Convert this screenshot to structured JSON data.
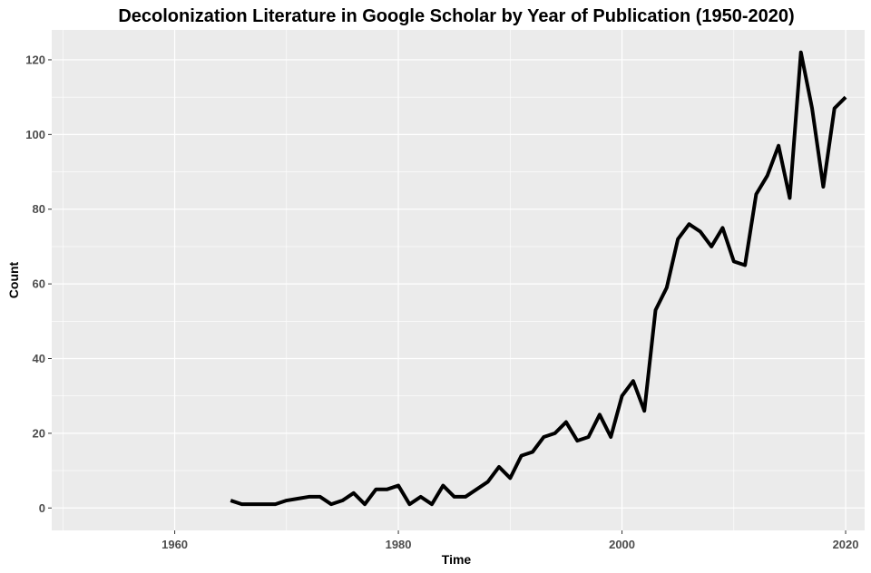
{
  "chart_data": {
    "type": "line",
    "title": "Decolonization Literature in Google Scholar by Year of Publication (1950-2020)",
    "xlabel": "Time",
    "ylabel": "Count",
    "xlim": [
      1949,
      2021.7
    ],
    "ylim": [
      -6,
      128
    ],
    "x_ticks": [
      1960,
      1980,
      2000,
      2020
    ],
    "x_tick_labels": [
      "1960",
      "1980",
      "2000",
      "2020"
    ],
    "y_ticks": [
      0,
      20,
      40,
      60,
      80,
      100,
      120
    ],
    "y_tick_labels": [
      "0",
      "20",
      "40",
      "60",
      "80",
      "100",
      "120"
    ],
    "grid": true,
    "legend": "none",
    "colors": {
      "panel": "#ebebeb",
      "grid": "#ffffff",
      "line": "#000000"
    },
    "series": [
      {
        "x": [
          1965,
          1966,
          1967,
          1968,
          1969,
          1970,
          1971,
          1972,
          1973,
          1974,
          1975,
          1976,
          1977,
          1978,
          1979,
          1980,
          1981,
          1982,
          1983,
          1984,
          1985,
          1986,
          1987,
          1988,
          1989,
          1990,
          1991,
          1992,
          1993,
          1994,
          1995,
          1996,
          1997,
          1998,
          1999,
          2000,
          2001,
          2002,
          2003,
          2004,
          2005,
          2006,
          2007,
          2008,
          2009,
          2010,
          2011,
          2012,
          2013,
          2014,
          2015,
          2016,
          2017,
          2018,
          2019,
          2020
        ],
        "values": [
          2,
          1,
          1,
          1,
          1,
          2,
          2.5,
          3,
          3,
          1,
          2,
          4,
          1,
          5,
          5,
          6,
          1,
          3,
          1,
          6,
          3,
          3,
          5,
          7,
          11,
          8,
          14,
          15,
          19,
          20,
          23,
          18,
          19,
          25,
          19,
          30,
          34,
          26,
          53,
          59,
          72,
          76,
          74,
          70,
          75,
          66,
          65,
          84,
          89,
          97,
          83,
          122,
          107,
          86,
          107,
          110
        ]
      }
    ]
  }
}
